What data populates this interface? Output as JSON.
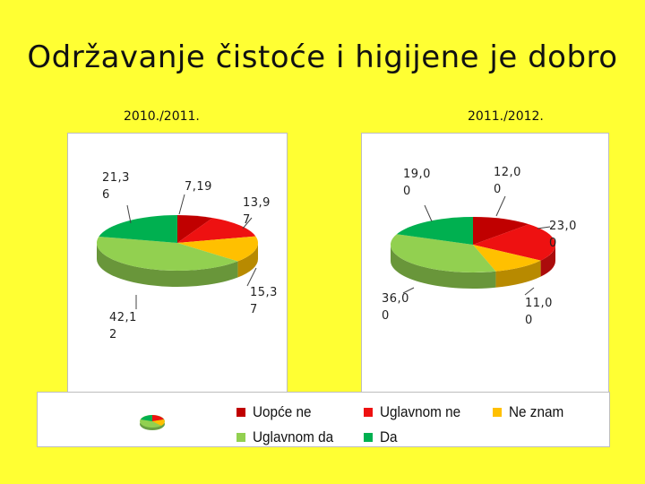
{
  "title": "Održavanje čistoće i higijene je dobro",
  "colors": {
    "background": "#FFFF33",
    "Uopće ne": "#C00000",
    "Uglavnom ne": "#EE1111",
    "Ne znam": "#FFC000",
    "Uglavnom da": "#92D050",
    "Da": "#00B050"
  },
  "legend_icon": "pie-chart-icon",
  "chart_data": [
    {
      "type": "pie",
      "title": "2010./2011.",
      "categories": [
        "Uopće ne",
        "Uglavnom ne",
        "Ne znam",
        "Uglavnom da",
        "Da"
      ],
      "values": [
        7.19,
        13.97,
        15.37,
        42.12,
        21.36
      ],
      "value_labels": [
        "7,19",
        "13,9\n7",
        "15,3\n7",
        "42,1\n2",
        "21,3\n6"
      ]
    },
    {
      "type": "pie",
      "title": "2011./2012.",
      "categories": [
        "Uopće ne",
        "Uglavnom ne",
        "Ne znam",
        "Uglavnom da",
        "Da"
      ],
      "values": [
        12.0,
        23.0,
        11.0,
        36.0,
        19.0
      ],
      "value_labels": [
        "12,0\n0",
        "23,0\n0",
        "11,0\n0",
        "36,0\n0",
        "19,0\n0"
      ]
    }
  ],
  "legend": {
    "items": [
      "Uopće ne",
      "Uglavnom ne",
      "Ne znam",
      "Uglavnom da",
      "Da"
    ]
  }
}
